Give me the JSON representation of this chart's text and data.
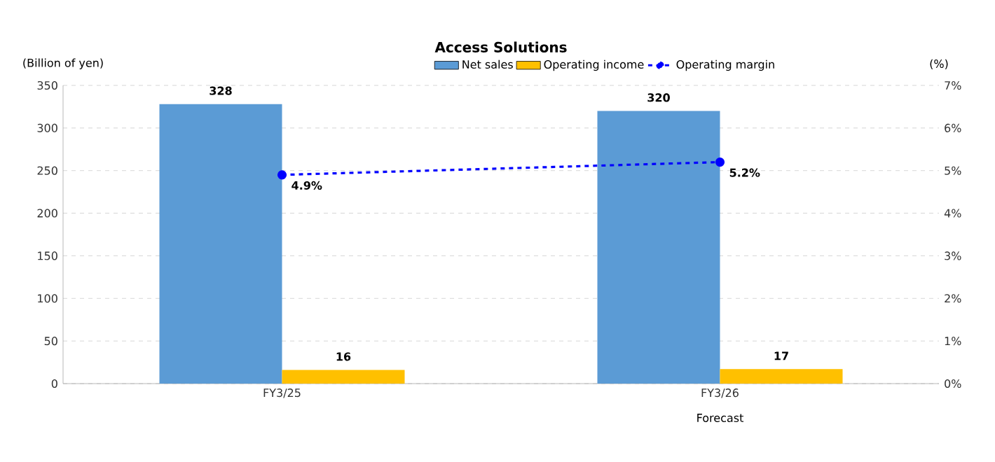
{
  "chart_data": {
    "type": "bar",
    "title": "Access Solutions",
    "categories": [
      "FY3/25",
      "FY3/26"
    ],
    "series": [
      {
        "name": "Net sales",
        "color": "#5b9bd5",
        "values": [
          328,
          320
        ]
      },
      {
        "name": "Operating income",
        "color": "#ffc000",
        "values": [
          16,
          17
        ]
      },
      {
        "name": "Operating margin",
        "type": "line",
        "axis": "y2",
        "color": "#0000ff",
        "values": [
          4.9,
          5.2
        ],
        "value_labels": [
          "4.9%",
          "5.2%"
        ],
        "marker": "circle",
        "line_style": "dashed"
      }
    ],
    "ylabel": "(Billion of yen)",
    "y2label": "(%)",
    "ylim": [
      0,
      350
    ],
    "yticks": [
      0,
      50,
      100,
      150,
      200,
      250,
      300,
      350
    ],
    "y2lim": [
      0,
      7
    ],
    "y2ticks": [
      {
        "value": 0,
        "label": "0%"
      },
      {
        "value": 1,
        "label": "1%"
      },
      {
        "value": 2,
        "label": "2%"
      },
      {
        "value": 3,
        "label": "3%"
      },
      {
        "value": 4,
        "label": "4%"
      },
      {
        "value": 5,
        "label": "5%"
      },
      {
        "value": 6,
        "label": "6%"
      },
      {
        "value": 7,
        "label": "7%"
      }
    ],
    "data_labels": true,
    "grid": "y",
    "legend": "top",
    "annotations": [
      "Forecast"
    ]
  }
}
